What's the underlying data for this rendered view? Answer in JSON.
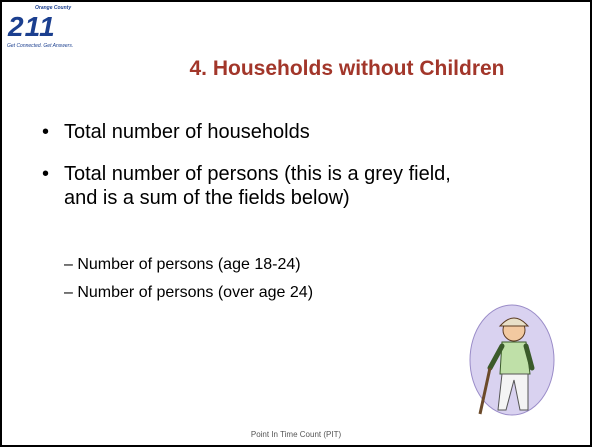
{
  "logo": {
    "top": "Orange County",
    "mark": "211",
    "tagline": "Get Connected. Get Answers."
  },
  "title": "4. Households without Children",
  "bullets": [
    "Total number of households",
    "Total number of persons (this is a grey field, and is a sum of the fields below)"
  ],
  "sub_bullets": [
    "Number of persons (age 18-24)",
    "Number of persons (over age 24)"
  ],
  "footer": "Point In Time Count (PIT)"
}
